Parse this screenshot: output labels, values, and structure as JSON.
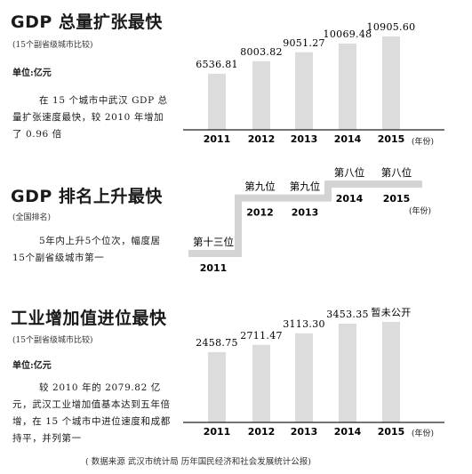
{
  "panels": [
    {
      "title": "GDP 总量扩张最快",
      "subtitle": "(15个副省级城市比较)",
      "unit": "单位:亿元",
      "description": "在 15 个城市中武汉 GDP 总量扩张速度最快，较 2010 年增加了 0.96 倍",
      "year_unit": "(年份)"
    },
    {
      "title": "GDP 排名上升最快",
      "subtitle": "(全国排名)",
      "description": "5年内上升5个位次，幅度居15个副省级城市第一",
      "year_unit": "(年份)"
    },
    {
      "title": "工业增加值进位最快",
      "subtitle": "(15个副省级城市比较)",
      "unit": "单位:亿元",
      "description": "较 2010 年的 2079.82 亿元，武汉工业增加值基本达到五年倍增，在 15 个城市中进位速度和成都持平，并列第一",
      "year_unit": "(年份)"
    }
  ],
  "chart_data": [
    {
      "type": "bar",
      "title": "GDP 总量扩张最快",
      "categories": [
        "2011",
        "2012",
        "2013",
        "2014",
        "2015"
      ],
      "values": [
        6536.81,
        8003.82,
        9051.27,
        10069.48,
        10905.6
      ],
      "value_labels": [
        "6536.81",
        "8003.82",
        "9051.27",
        "10069.48",
        "10905.60"
      ],
      "xlabel": "(年份)",
      "ylabel": "单位:亿元",
      "ylim": [
        0,
        11000
      ]
    },
    {
      "type": "line",
      "title": "GDP 排名上升最快",
      "categories": [
        "2011",
        "2012",
        "2013",
        "2014",
        "2015"
      ],
      "values": [
        13,
        9,
        9,
        8,
        8
      ],
      "value_labels": [
        "第十三位",
        "第九位",
        "第九位",
        "第八位",
        "第八位"
      ],
      "xlabel": "(年份)"
    },
    {
      "type": "bar",
      "title": "工业增加值进位最快",
      "categories": [
        "2011",
        "2012",
        "2013",
        "2014",
        "2015"
      ],
      "values": [
        2458.75,
        2711.47,
        3113.3,
        3453.35,
        null
      ],
      "value_labels": [
        "2458.75",
        "2711.47",
        "3113.30",
        "3453.35",
        "暂未公开"
      ],
      "xlabel": "(年份)",
      "ylabel": "单位:亿元",
      "ylim": [
        0,
        3700
      ]
    }
  ],
  "footer": {
    "source": "( 数据来源 武汉市统计局 历年国民经济和社会发展统计公报)"
  }
}
